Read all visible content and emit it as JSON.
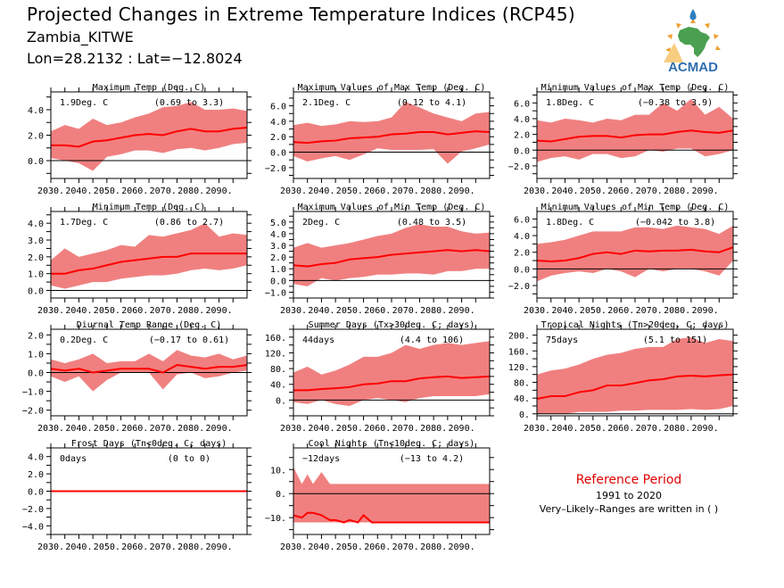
{
  "header": {
    "title": "Projected Changes in Extreme Temperature Indices (RCP45)",
    "location": "Zambia_KITWE",
    "coordinates": "Lon=28.2132 : Lat=−12.8024",
    "logo_text": "ACMAD",
    "logo_icon": "acmad-africa-logo"
  },
  "legend_note": {
    "title": "Reference Period",
    "period": "1991 to 2020",
    "note": "Very–Likely–Ranges are written in ( )"
  },
  "colors": {
    "line": "#ff0000",
    "band": "#f08080",
    "zero_line": "#000000",
    "ref_title": "#e00000"
  },
  "chart_data": [
    {
      "type": "area",
      "title": "Maximum Temp (Deg. C)",
      "summary": "1.9Deg. C",
      "range_text": "(0.69 to 3.3)",
      "x_ticks": [
        "2030.",
        "2040.",
        "2050.",
        "2060.",
        "2070.",
        "2080.",
        "2090."
      ],
      "xlim": [
        2030,
        2100
      ],
      "ylim": [
        -1.4,
        5.4
      ],
      "y_ticks": [
        0,
        2,
        4
      ],
      "y_tick_labels": [
        "0.0",
        "2.0",
        "4.0"
      ],
      "y_minor_step": 1,
      "x": [
        2030,
        2035,
        2040,
        2045,
        2050,
        2055,
        2060,
        2065,
        2070,
        2075,
        2080,
        2085,
        2090,
        2095,
        2100
      ],
      "median": [
        1.2,
        1.2,
        1.1,
        1.5,
        1.6,
        1.8,
        2.0,
        2.1,
        2.0,
        2.3,
        2.5,
        2.3,
        2.3,
        2.5,
        2.6
      ],
      "lower": [
        0.2,
        0.0,
        -0.2,
        -0.8,
        0.3,
        0.5,
        0.8,
        0.8,
        0.6,
        0.9,
        1.0,
        0.8,
        1.0,
        1.3,
        1.4
      ],
      "upper": [
        2.3,
        2.8,
        2.5,
        3.3,
        2.8,
        3.0,
        3.4,
        3.7,
        4.2,
        4.3,
        4.6,
        4.0,
        4.0,
        4.1,
        3.9
      ]
    },
    {
      "type": "area",
      "title": "Maximum Values of Max Temp (Deg. C)",
      "summary": "2.1Deg. C",
      "range_text": "(0.12 to 4.1)",
      "x_ticks": [
        "2030.",
        "2040.",
        "2050.",
        "2060.",
        "2070.",
        "2080.",
        "2090."
      ],
      "xlim": [
        2030,
        2100
      ],
      "ylim": [
        -3.4,
        7.8
      ],
      "y_ticks": [
        -2,
        0,
        2,
        4,
        6
      ],
      "y_tick_labels": [
        "−2.0",
        "0.0",
        "2.0",
        "4.0",
        "6.0"
      ],
      "y_minor_step": 1,
      "x": [
        2030,
        2035,
        2040,
        2045,
        2050,
        2055,
        2060,
        2065,
        2070,
        2075,
        2080,
        2085,
        2090,
        2095,
        2100
      ],
      "median": [
        1.3,
        1.2,
        1.4,
        1.5,
        1.8,
        1.9,
        2.0,
        2.3,
        2.4,
        2.6,
        2.6,
        2.3,
        2.5,
        2.7,
        2.6
      ],
      "lower": [
        -0.5,
        -1.2,
        -0.8,
        -0.5,
        -1.0,
        -0.3,
        0.5,
        0.3,
        0.3,
        0.3,
        0.4,
        -1.5,
        0.1,
        0.5,
        1.0
      ],
      "upper": [
        3.5,
        3.8,
        3.4,
        3.6,
        4.0,
        3.9,
        4.0,
        4.5,
        6.5,
        5.8,
        5.0,
        4.5,
        4.0,
        5.0,
        5.2
      ]
    },
    {
      "type": "area",
      "title": "Minimum Values of Max Temp (Deg. C)",
      "summary": "1.8Deg. C",
      "range_text": "(−0.38 to 3.9)",
      "x_ticks": [
        "2030.",
        "2040.",
        "2050.",
        "2060.",
        "2070.",
        "2080.",
        "2090."
      ],
      "xlim": [
        2030,
        2100
      ],
      "ylim": [
        -3.6,
        7.4
      ],
      "y_ticks": [
        -2,
        0,
        2,
        4,
        6
      ],
      "y_tick_labels": [
        "−2.0",
        "0.0",
        "2.0",
        "4.0",
        "6.0"
      ],
      "y_minor_step": 1,
      "x": [
        2030,
        2035,
        2040,
        2045,
        2050,
        2055,
        2060,
        2065,
        2070,
        2075,
        2080,
        2085,
        2090,
        2095,
        2100
      ],
      "median": [
        1.2,
        1.1,
        1.4,
        1.7,
        1.8,
        1.8,
        1.6,
        1.9,
        2.0,
        2.0,
        2.3,
        2.5,
        2.3,
        2.2,
        2.5
      ],
      "lower": [
        -1.5,
        -1.0,
        -0.8,
        -1.2,
        -0.5,
        -0.5,
        -1.0,
        -0.8,
        0.0,
        -0.2,
        0.2,
        0.2,
        -0.8,
        -0.5,
        0.0
      ],
      "upper": [
        3.8,
        3.5,
        4.0,
        3.8,
        3.5,
        4.0,
        3.8,
        4.5,
        4.5,
        6.0,
        5.0,
        6.5,
        4.5,
        5.5,
        4.0
      ]
    },
    {
      "type": "area",
      "title": "Minimum Temp (Deg. C)",
      "summary": "1.7Deg. C",
      "range_text": "(0.86 to 2.7)",
      "x_ticks": [
        "2030.",
        "2040.",
        "2050.",
        "2060.",
        "2070.",
        "2080.",
        "2090."
      ],
      "xlim": [
        2030,
        2100
      ],
      "ylim": [
        -0.45,
        4.7
      ],
      "y_ticks": [
        0,
        1,
        2,
        3,
        4
      ],
      "y_tick_labels": [
        "0.0",
        "1.0",
        "2.0",
        "3.0",
        "4.0"
      ],
      "y_minor_step": 0.5,
      "x": [
        2030,
        2035,
        2040,
        2045,
        2050,
        2055,
        2060,
        2065,
        2070,
        2075,
        2080,
        2085,
        2090,
        2095,
        2100
      ],
      "median": [
        1.0,
        1.0,
        1.2,
        1.3,
        1.5,
        1.7,
        1.8,
        1.9,
        2.0,
        2.0,
        2.2,
        2.2,
        2.2,
        2.2,
        2.2
      ],
      "lower": [
        0.3,
        0.1,
        0.3,
        0.5,
        0.5,
        0.7,
        0.8,
        0.9,
        0.9,
        1.0,
        1.2,
        1.3,
        1.2,
        1.3,
        1.5
      ],
      "upper": [
        1.8,
        2.5,
        2.0,
        2.2,
        2.4,
        2.7,
        2.6,
        3.3,
        3.2,
        3.4,
        3.6,
        4.0,
        3.2,
        3.4,
        3.3
      ]
    },
    {
      "type": "area",
      "title": "Maximum Values of Min Temp (Deg. C)",
      "summary": "2Deg. C",
      "range_text": "(0.48 to 3.5)",
      "x_ticks": [
        "2030.",
        "2040.",
        "2050.",
        "2060.",
        "2070.",
        "2080.",
        "2090."
      ],
      "xlim": [
        2030,
        2100
      ],
      "ylim": [
        -1.5,
        5.9
      ],
      "y_ticks": [
        -1,
        0,
        1,
        2,
        3,
        4,
        5
      ],
      "y_tick_labels": [
        "−1.0",
        "0.0",
        "1.0",
        "2.0",
        "3.0",
        "4.0",
        "5.0"
      ],
      "y_minor_step": 0.5,
      "x": [
        2030,
        2035,
        2040,
        2045,
        2050,
        2055,
        2060,
        2065,
        2070,
        2075,
        2080,
        2085,
        2090,
        2095,
        2100
      ],
      "median": [
        1.3,
        1.2,
        1.4,
        1.5,
        1.8,
        1.9,
        2.0,
        2.2,
        2.3,
        2.4,
        2.5,
        2.6,
        2.5,
        2.6,
        2.5
      ],
      "lower": [
        -0.3,
        -0.5,
        0.2,
        0.0,
        0.2,
        0.3,
        0.5,
        0.5,
        0.6,
        0.6,
        0.5,
        0.8,
        0.8,
        1.0,
        1.0
      ],
      "upper": [
        2.8,
        3.2,
        2.8,
        3.0,
        3.2,
        3.5,
        3.8,
        4.0,
        4.5,
        4.8,
        4.6,
        4.6,
        4.2,
        4.0,
        4.1
      ]
    },
    {
      "type": "area",
      "title": "Minimum Values of Min Temp (Deg. C)",
      "summary": "1.8Deg. C",
      "range_text": "(−0.042 to 3.8)",
      "x_ticks": [
        "2030.",
        "2040.",
        "2050.",
        "2060.",
        "2070.",
        "2080.",
        "2090."
      ],
      "xlim": [
        2030,
        2100
      ],
      "ylim": [
        -3.5,
        6.9
      ],
      "y_ticks": [
        -2,
        0,
        2,
        4,
        6
      ],
      "y_tick_labels": [
        "−2.0",
        "0.0",
        "2.0",
        "4.0",
        "6.0"
      ],
      "y_minor_step": 1,
      "x": [
        2030,
        2035,
        2040,
        2045,
        2050,
        2055,
        2060,
        2065,
        2070,
        2075,
        2080,
        2085,
        2090,
        2095,
        2100
      ],
      "median": [
        1.0,
        0.9,
        1.0,
        1.3,
        1.8,
        2.0,
        1.8,
        2.2,
        2.1,
        2.2,
        2.2,
        2.3,
        2.1,
        2.0,
        2.6
      ],
      "lower": [
        -1.5,
        -0.8,
        -0.5,
        -0.3,
        -0.5,
        0.0,
        -0.3,
        -1.0,
        0.0,
        -0.3,
        0.0,
        0.0,
        -0.3,
        -0.8,
        1.0
      ],
      "upper": [
        3.0,
        3.2,
        3.5,
        4.0,
        4.5,
        4.5,
        4.5,
        5.0,
        5.0,
        4.8,
        5.2,
        5.0,
        4.8,
        4.2,
        5.2
      ]
    },
    {
      "type": "area",
      "title": "Diurnal Temp Range (Deg. C)",
      "summary": "0.2Deg. C",
      "range_text": "(−0.17 to 0.61)",
      "x_ticks": [
        "2030.",
        "2040.",
        "2050.",
        "2060.",
        "2070.",
        "2080.",
        "2090."
      ],
      "xlim": [
        2030,
        2100
      ],
      "ylim": [
        -2.3,
        2.3
      ],
      "y_ticks": [
        -2,
        -1,
        0,
        1,
        2
      ],
      "y_tick_labels": [
        "−2.0",
        "−1.0",
        "0.0",
        "1.0",
        "2.0"
      ],
      "y_minor_step": 0.5,
      "x": [
        2030,
        2035,
        2040,
        2045,
        2050,
        2055,
        2060,
        2065,
        2070,
        2075,
        2080,
        2085,
        2090,
        2095,
        2100
      ],
      "median": [
        0.2,
        0.1,
        0.2,
        0.0,
        0.1,
        0.2,
        0.2,
        0.2,
        0.0,
        0.4,
        0.3,
        0.2,
        0.3,
        0.3,
        0.4
      ],
      "lower": [
        -0.2,
        -0.5,
        -0.2,
        -1.0,
        -0.4,
        0.0,
        0.0,
        0.0,
        -0.9,
        -0.1,
        0.0,
        -0.3,
        -0.2,
        0.0,
        0.1
      ],
      "upper": [
        0.7,
        0.5,
        0.7,
        1.0,
        0.5,
        0.6,
        0.6,
        1.0,
        0.6,
        1.2,
        0.9,
        0.8,
        1.0,
        0.7,
        0.9
      ]
    },
    {
      "type": "area",
      "title": "Summer Days (Tx>30deg. C; days)",
      "summary": "44days",
      "range_text": "(4.4 to 106)",
      "x_ticks": [
        "2030.",
        "2040.",
        "2050.",
        "2060.",
        "2070.",
        "2080.",
        "2090."
      ],
      "xlim": [
        2030,
        2100
      ],
      "ylim": [
        -40,
        180
      ],
      "y_ticks": [
        0,
        40,
        80,
        120,
        160
      ],
      "y_tick_labels": [
        "0.",
        "40.",
        "80.",
        "120.",
        "160."
      ],
      "y_minor_step": 20,
      "x": [
        2030,
        2035,
        2040,
        2045,
        2050,
        2055,
        2060,
        2065,
        2070,
        2075,
        2080,
        2085,
        2090,
        2095,
        2100
      ],
      "median": [
        25,
        25,
        28,
        30,
        33,
        40,
        42,
        48,
        48,
        55,
        58,
        60,
        56,
        58,
        60
      ],
      "lower": [
        -5,
        -10,
        0,
        -10,
        -15,
        0,
        5,
        0,
        -5,
        5,
        10,
        10,
        10,
        10,
        15
      ],
      "upper": [
        70,
        85,
        65,
        75,
        90,
        110,
        110,
        120,
        140,
        130,
        140,
        145,
        140,
        145,
        150
      ]
    },
    {
      "type": "area",
      "title": "Tropical Nights (Tn>20deg. C; days)",
      "summary": "75days",
      "range_text": "(5.1 to 151)",
      "x_ticks": [
        "2030.",
        "2040.",
        "2050.",
        "2060.",
        "2070.",
        "2080.",
        "2090."
      ],
      "xlim": [
        2030,
        2100
      ],
      "ylim": [
        -5,
        215
      ],
      "y_ticks": [
        0,
        40,
        80,
        120,
        160,
        200
      ],
      "y_tick_labels": [
        "0.",
        "40.",
        "80.",
        "120.",
        "160.",
        "200."
      ],
      "y_minor_step": 20,
      "x": [
        2030,
        2035,
        2040,
        2045,
        2050,
        2055,
        2060,
        2065,
        2070,
        2075,
        2080,
        2085,
        2090,
        2095,
        2100
      ],
      "median": [
        38,
        45,
        45,
        55,
        60,
        72,
        72,
        78,
        85,
        88,
        95,
        97,
        95,
        98,
        100
      ],
      "lower": [
        0,
        0,
        0,
        5,
        5,
        5,
        8,
        8,
        10,
        10,
        10,
        12,
        10,
        12,
        20
      ],
      "upper": [
        100,
        110,
        115,
        125,
        140,
        150,
        155,
        165,
        170,
        170,
        190,
        195,
        180,
        190,
        185
      ]
    },
    {
      "type": "area",
      "title": "Frost Days (Tn<0deg. C; days)",
      "summary": "0days",
      "range_text": "(0 to 0)",
      "x_ticks": [
        "2030.",
        "2040.",
        "2050.",
        "2060.",
        "2070.",
        "2080.",
        "2090."
      ],
      "xlim": [
        2030,
        2100
      ],
      "ylim": [
        -5,
        5
      ],
      "y_ticks": [
        -4,
        -2,
        0,
        2,
        4
      ],
      "y_tick_labels": [
        "−4.0",
        "−2.0",
        "0.0",
        "2.0",
        "4.0"
      ],
      "y_minor_step": 1,
      "x": [
        2030,
        2100
      ],
      "median": [
        0,
        0
      ],
      "lower": [
        0,
        0
      ],
      "upper": [
        0,
        0
      ]
    },
    {
      "type": "area",
      "title": "Cool Nights (Tn<10deg. C; days)",
      "summary": "−12days",
      "range_text": "(−13 to 4.2)",
      "x_ticks": [
        "2030.",
        "2040.",
        "2050.",
        "2060.",
        "2070.",
        "2080.",
        "2090."
      ],
      "xlim": [
        2030,
        2100
      ],
      "ylim": [
        -17,
        19
      ],
      "y_ticks": [
        -10,
        0,
        10
      ],
      "y_tick_labels": [
        "−10.",
        "0.",
        "10."
      ],
      "y_minor_step": 5,
      "x": [
        2030,
        2033,
        2035,
        2037,
        2040,
        2043,
        2045,
        2048,
        2050,
        2053,
        2055,
        2058,
        2060,
        2070,
        2080,
        2090,
        2100
      ],
      "median": [
        -9,
        -10,
        -8,
        -8,
        -9,
        -11,
        -11,
        -12,
        -11,
        -12,
        -9,
        -12,
        -12,
        -12,
        -12,
        -12,
        -12
      ],
      "lower": [
        -12,
        -12,
        -12,
        -12,
        -12,
        -12,
        -12,
        -12,
        -12,
        -12,
        -12,
        -12,
        -12,
        -12,
        -12,
        -12,
        -12
      ],
      "upper": [
        11,
        4,
        8,
        4,
        9,
        4,
        4,
        4,
        4,
        4,
        4,
        4,
        4,
        4,
        4,
        4,
        4
      ]
    }
  ]
}
